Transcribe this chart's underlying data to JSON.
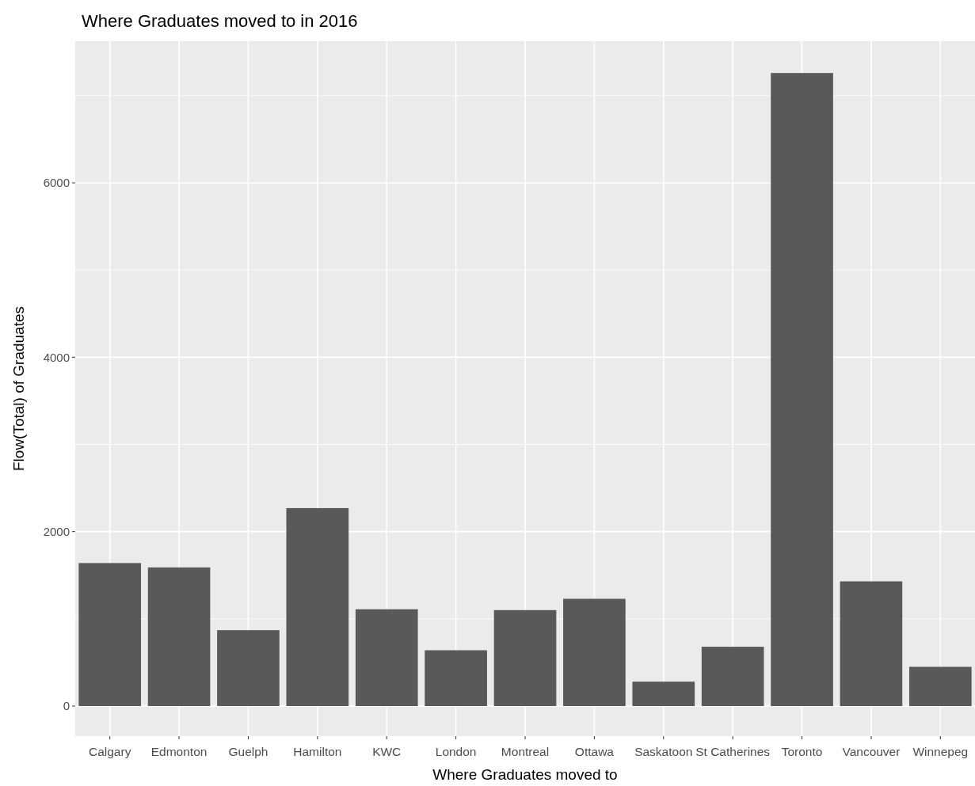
{
  "chart_data": {
    "type": "bar",
    "title": "Where Graduates moved to in 2016",
    "xlabel": "Where Graduates moved to",
    "ylabel": "Flow(Total) of Graduates",
    "categories": [
      "Calgary",
      "Edmonton",
      "Guelph",
      "Hamilton",
      "KWC",
      "London",
      "Montreal",
      "Ottawa",
      "Saskatoon",
      "St Catherines",
      "Toronto",
      "Vancouver",
      "Winnepeg"
    ],
    "values": [
      1640,
      1590,
      870,
      2270,
      1110,
      640,
      1100,
      1230,
      280,
      680,
      7260,
      1430,
      450
    ],
    "color": "#595959",
    "ylim": [
      -345,
      7625
    ],
    "yticks": [
      0,
      2000,
      4000,
      6000
    ],
    "grid": true
  }
}
